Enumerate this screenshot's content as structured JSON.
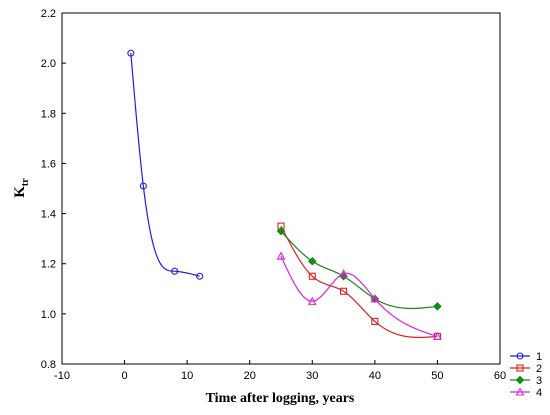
{
  "chart_data": {
    "type": "scatter",
    "title": "",
    "xlabel": "Time after logging, years",
    "ylabel": {
      "main": "K",
      "sub": "tr"
    },
    "xlim": [
      -10,
      60
    ],
    "ylim": [
      0.8,
      2.2
    ],
    "x_ticks": [
      "-10",
      "0",
      "10",
      "20",
      "30",
      "40",
      "50",
      "60"
    ],
    "y_ticks": [
      "0.8",
      "1.0",
      "1.2",
      "1.4",
      "1.6",
      "1.8",
      "2.0",
      "2.2"
    ],
    "grid": false,
    "legend_position": "bottom-right",
    "series": [
      {
        "name": "1",
        "color": "#1f1fe0",
        "marker": "circle",
        "x": [
          1,
          3,
          8,
          12
        ],
        "y": [
          2.04,
          1.51,
          1.17,
          1.15
        ]
      },
      {
        "name": "2",
        "color": "#e02020",
        "marker": "square",
        "x": [
          25,
          30,
          35,
          40,
          50
        ],
        "y": [
          1.35,
          1.15,
          1.09,
          0.97,
          0.91
        ]
      },
      {
        "name": "3",
        "color": "#138a13",
        "marker": "diamond",
        "x": [
          25,
          30,
          35,
          40,
          50
        ],
        "y": [
          1.33,
          1.21,
          1.15,
          1.06,
          1.03
        ]
      },
      {
        "name": "4",
        "color": "#e020e0",
        "marker": "triangle",
        "x": [
          25,
          30,
          35,
          40,
          50
        ],
        "y": [
          1.23,
          1.05,
          1.16,
          1.06,
          0.91
        ]
      }
    ]
  }
}
